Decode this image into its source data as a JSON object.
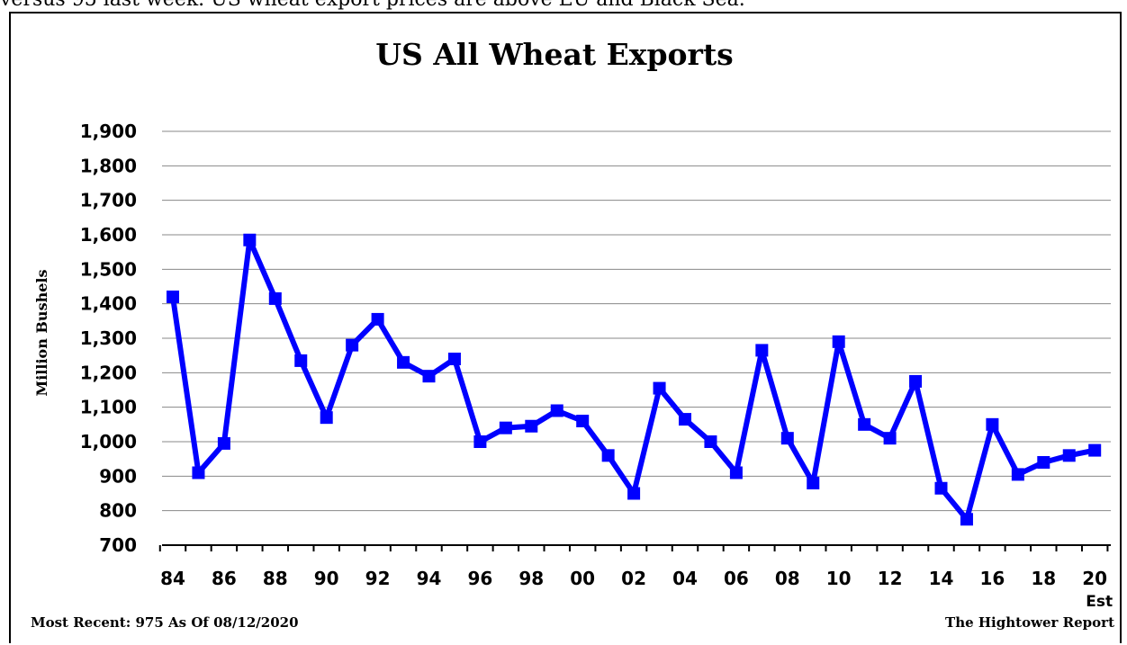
{
  "header_text": "versus 95 last week. US wheat export prices are above EU and Black Sea.",
  "source_label": "The Hightower Report",
  "recent_note": "Most Recent: 975 As Of 08/12/2020",
  "colors": {
    "line": "#0000ff",
    "marker": "#0000ff",
    "grid": "#888888",
    "text": "#000000"
  },
  "chart_data": {
    "type": "line",
    "title": "US All Wheat Exports",
    "ylabel": "Million Bushels",
    "xlabel": "",
    "ylim": [
      700,
      1900
    ],
    "yticks": [
      700,
      800,
      900,
      1000,
      1100,
      1200,
      1300,
      1400,
      1500,
      1600,
      1700,
      1800,
      1900
    ],
    "ytick_labels": [
      "700",
      "800",
      "900",
      "1,000",
      "1,100",
      "1,200",
      "1,300",
      "1,400",
      "1,500",
      "1,600",
      "1,700",
      "1,800",
      "1,900"
    ],
    "xtick_labels": [
      "84",
      "86",
      "88",
      "90",
      "92",
      "94",
      "96",
      "98",
      "00",
      "02",
      "04",
      "06",
      "08",
      "10",
      "12",
      "14",
      "16",
      "18",
      "20"
    ],
    "last_label_suffix": "Est",
    "grid": true,
    "series": [
      {
        "x": [
          "84",
          "85",
          "86",
          "87",
          "88",
          "89",
          "90",
          "91",
          "92",
          "93",
          "94",
          "95",
          "96",
          "97",
          "98",
          "99",
          "00",
          "01",
          "02",
          "03",
          "04",
          "05",
          "06",
          "07",
          "08",
          "09",
          "10",
          "11",
          "12",
          "13",
          "14",
          "15",
          "16",
          "17",
          "18",
          "19",
          "20"
        ],
        "values": [
          1420,
          910,
          995,
          1585,
          1415,
          1235,
          1070,
          1280,
          1355,
          1230,
          1190,
          1240,
          1000,
          1040,
          1045,
          1090,
          1060,
          960,
          850,
          1155,
          1065,
          1000,
          910,
          1265,
          1010,
          880,
          1290,
          1050,
          1010,
          1175,
          865,
          775,
          1050,
          905,
          940,
          960,
          975
        ]
      }
    ]
  }
}
